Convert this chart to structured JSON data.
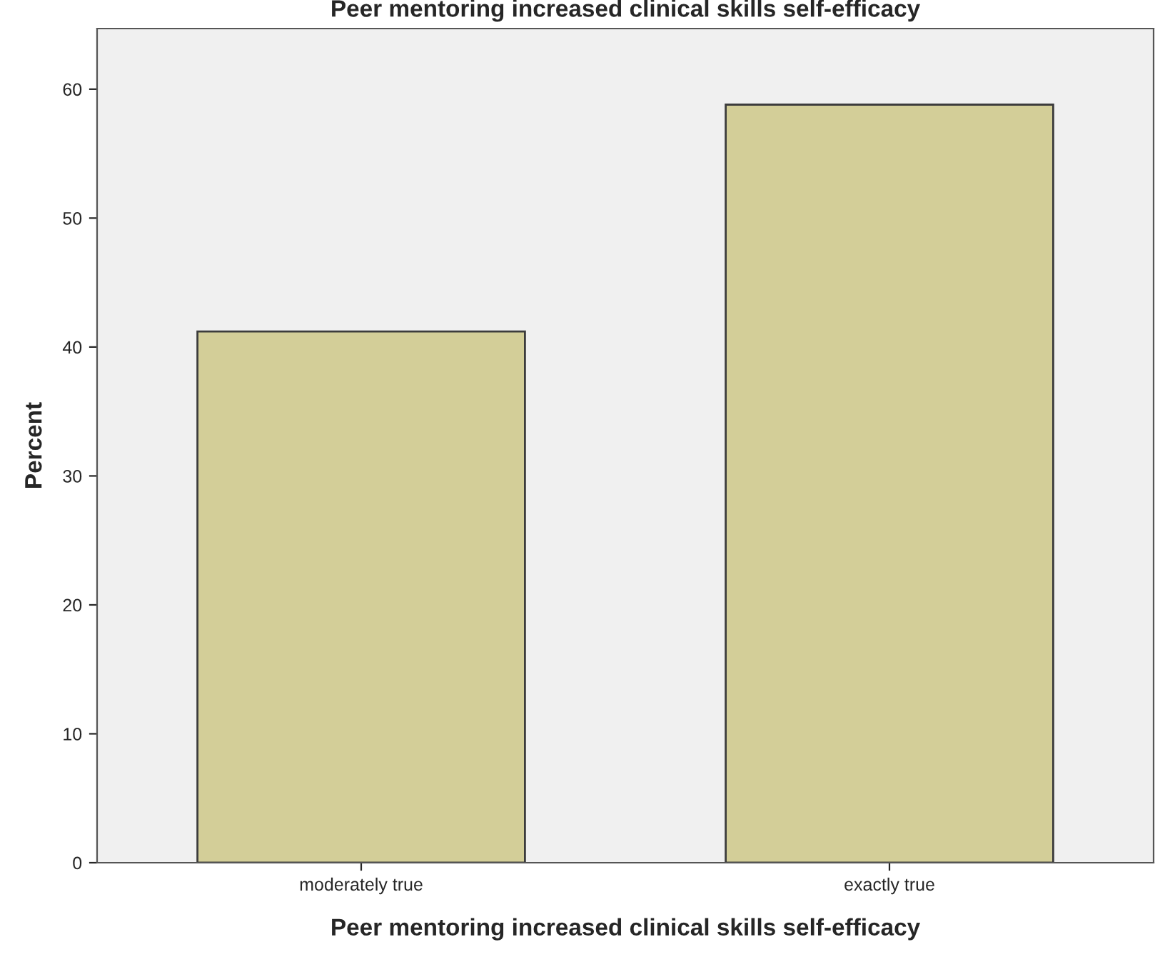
{
  "chart_data": {
    "type": "bar",
    "title": "Peer mentoring increased clinical skills self-efficacy",
    "xlabel": "Peer mentoring increased clinical skills self-efficacy",
    "ylabel": "Percent",
    "categories": [
      "moderately true",
      "exactly true"
    ],
    "values": [
      41.2,
      58.8
    ],
    "color": "#d3ce98",
    "ylim": [
      0,
      64.7
    ],
    "yticks": [
      0,
      10,
      20,
      30,
      40,
      50,
      60
    ],
    "grid": false
  }
}
